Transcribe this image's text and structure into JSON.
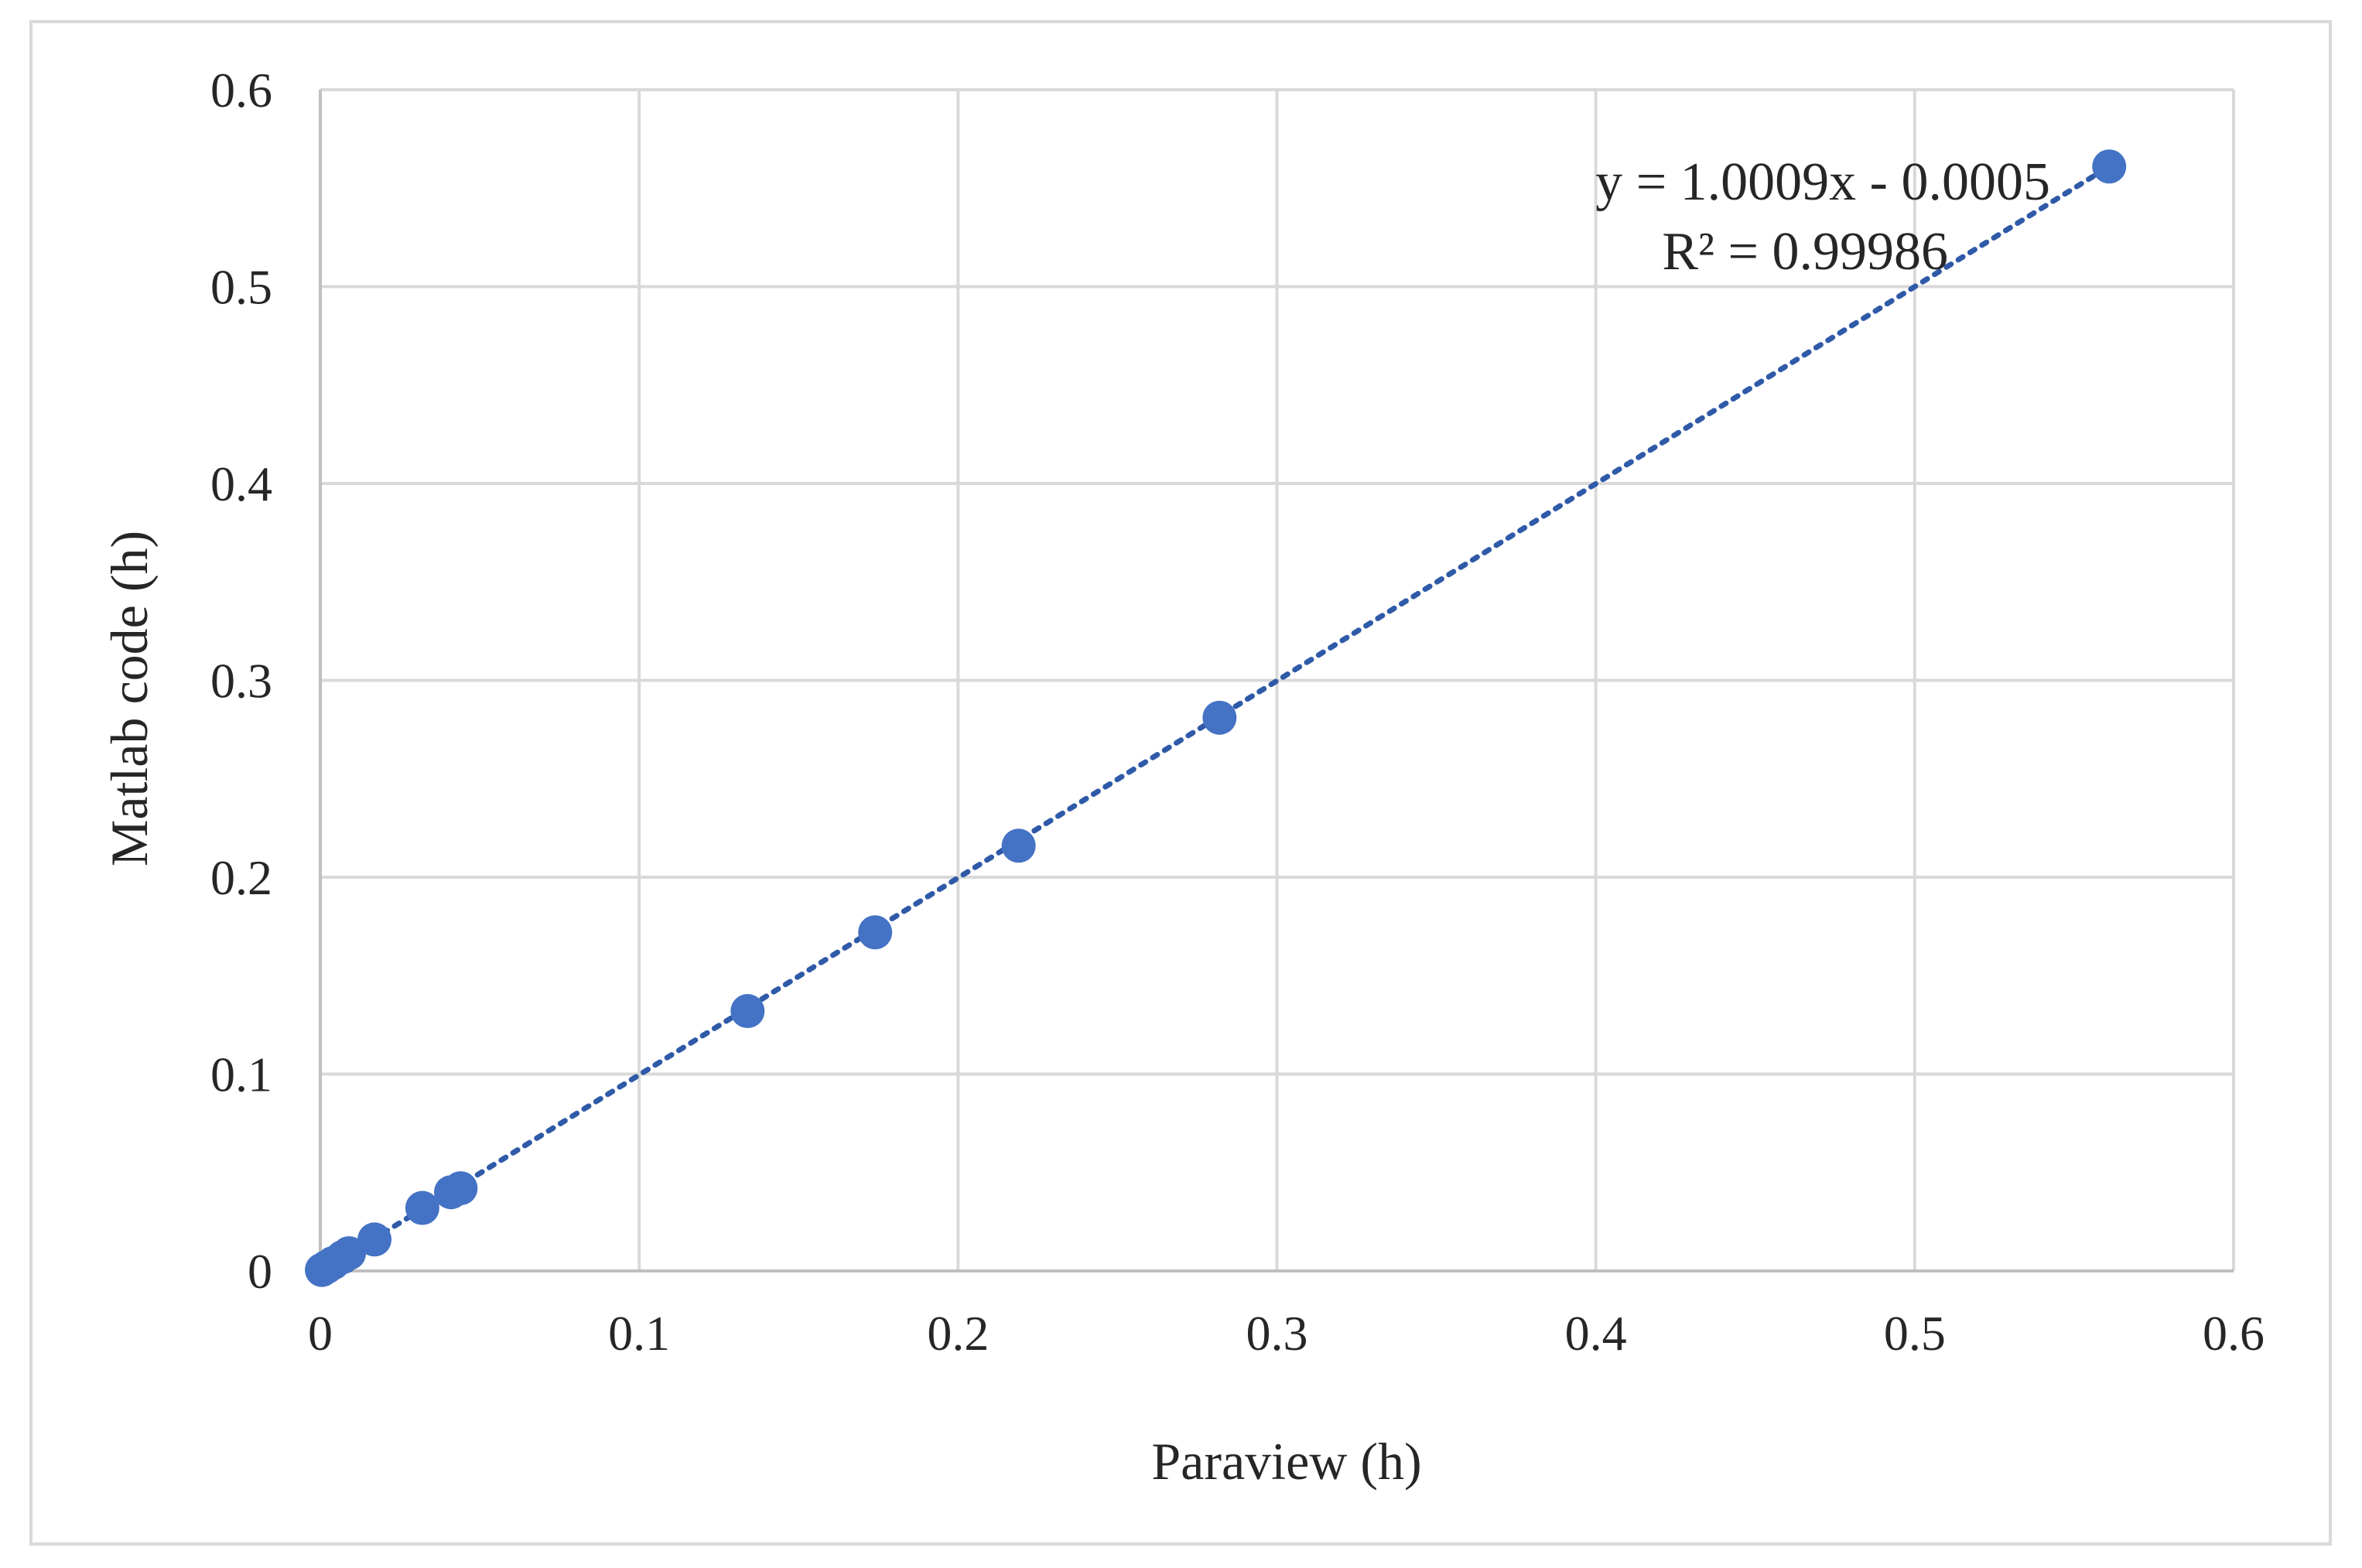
{
  "chart_data": {
    "type": "scatter",
    "xlabel": "Paraview (h)",
    "ylabel": "Matlab code (h)",
    "xlim": [
      0,
      0.6
    ],
    "ylim": [
      0,
      0.6
    ],
    "x_ticks": [
      "0",
      "0.1",
      "0.2",
      "0.3",
      "0.4",
      "0.5",
      "0.6"
    ],
    "y_ticks": [
      "0",
      "0.1",
      "0.2",
      "0.3",
      "0.4",
      "0.5",
      "0.6"
    ],
    "grid": true,
    "series": [
      {
        "points": [
          {
            "x": 0.0005,
            "y": 0.0005
          },
          {
            "x": 0.002,
            "y": 0.002
          },
          {
            "x": 0.004,
            "y": 0.004
          },
          {
            "x": 0.007,
            "y": 0.007
          },
          {
            "x": 0.009,
            "y": 0.009
          },
          {
            "x": 0.017,
            "y": 0.016
          },
          {
            "x": 0.032,
            "y": 0.032
          },
          {
            "x": 0.041,
            "y": 0.04
          },
          {
            "x": 0.044,
            "y": 0.042
          },
          {
            "x": 0.134,
            "y": 0.132
          },
          {
            "x": 0.174,
            "y": 0.172
          },
          {
            "x": 0.219,
            "y": 0.216
          },
          {
            "x": 0.282,
            "y": 0.281
          },
          {
            "x": 0.561,
            "y": 0.561
          }
        ],
        "color": "#4472c4"
      }
    ],
    "trendline": {
      "slope": 1.0009,
      "intercept": -0.0005,
      "style": "dotted",
      "color": "#2f5aa8"
    },
    "annotations": {
      "equation": "y = 1.0009x - 0.0005",
      "r_squared": "R² = 0.99986"
    }
  }
}
